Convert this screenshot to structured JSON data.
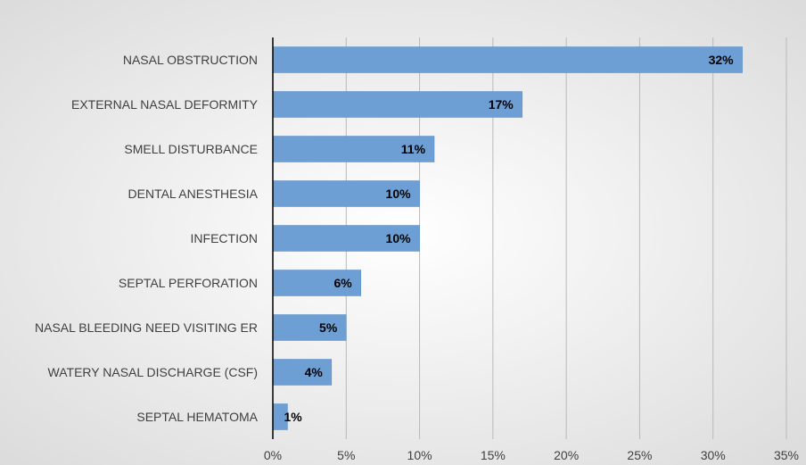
{
  "chart_data": {
    "type": "bar",
    "orientation": "horizontal",
    "categories": [
      "NASAL OBSTRUCTION",
      "EXTERNAL NASAL DEFORMITY",
      "SMELL DISTURBANCE",
      "DENTAL ANESTHESIA",
      "INFECTION",
      "SEPTAL PERFORATION",
      "NASAL BLEEDING NEED VISITING ER",
      "WATERY NASAL DISCHARGE (CSF)",
      "SEPTAL HEMATOMA"
    ],
    "values": [
      32,
      17,
      11,
      10,
      10,
      6,
      5,
      4,
      1
    ],
    "data_labels": [
      "32%",
      "17%",
      "11%",
      "10%",
      "10%",
      "6%",
      "5%",
      "4%",
      "1%"
    ],
    "x_ticks": [
      0,
      5,
      10,
      15,
      20,
      25,
      30,
      35
    ],
    "x_tick_labels": [
      "0%",
      "5%",
      "10%",
      "15%",
      "20%",
      "25%",
      "30%",
      "35%"
    ],
    "xlim": [
      0,
      35
    ],
    "title": "",
    "xlabel": "",
    "ylabel": "",
    "grid": "vertical",
    "legend": "none",
    "colors": {
      "bar": "#6d9fd5",
      "bar_border": "#5a8cc4",
      "grid": "#b9b9b9",
      "axis": "#000000",
      "label_text": "#000000",
      "background_center": "#ffffff",
      "background_edge": "#d9d9d9"
    }
  }
}
